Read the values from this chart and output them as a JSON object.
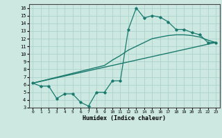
{
  "title": "",
  "xlabel": "Humidex (Indice chaleur)",
  "bg_color": "#cce8e0",
  "line_color": "#1a7a6e",
  "grid_color": "#aad4cc",
  "xlim": [
    -0.5,
    23.5
  ],
  "ylim": [
    3,
    16.5
  ],
  "xticks": [
    0,
    1,
    2,
    3,
    4,
    5,
    6,
    7,
    8,
    9,
    10,
    11,
    12,
    13,
    14,
    15,
    16,
    17,
    18,
    19,
    20,
    21,
    22,
    23
  ],
  "yticks": [
    3,
    4,
    5,
    6,
    7,
    8,
    9,
    10,
    11,
    12,
    13,
    14,
    15,
    16
  ],
  "curve1_x": [
    0,
    1,
    2,
    3,
    4,
    5,
    6,
    7,
    8,
    9,
    10,
    11,
    12,
    13,
    14,
    15,
    16,
    17,
    18,
    19,
    20,
    21,
    22,
    23
  ],
  "curve1_y": [
    6.2,
    5.8,
    5.8,
    4.2,
    4.8,
    4.8,
    3.7,
    3.2,
    5.0,
    5.0,
    6.5,
    6.5,
    13.2,
    16.0,
    14.7,
    15.0,
    14.8,
    14.2,
    13.2,
    13.2,
    12.8,
    12.5,
    11.5,
    11.5
  ],
  "curve2_x": [
    0,
    23
  ],
  "curve2_y": [
    6.2,
    11.5
  ],
  "curve3_x": [
    0,
    9,
    10,
    11,
    12,
    13,
    14,
    15,
    16,
    17,
    18,
    19,
    20,
    21,
    22,
    23
  ],
  "curve3_y": [
    6.2,
    8.5,
    9.2,
    9.8,
    10.5,
    11.0,
    11.5,
    12.0,
    12.2,
    12.4,
    12.5,
    12.5,
    12.4,
    12.2,
    11.8,
    11.5
  ]
}
